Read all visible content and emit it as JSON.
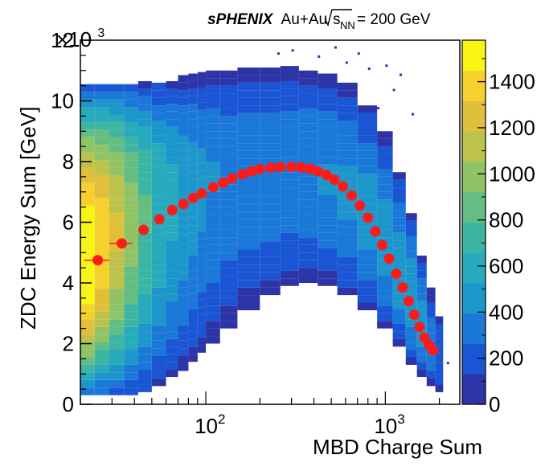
{
  "chart_data": {
    "type": "heatmap",
    "title": {
      "experiment": "sPHENIX",
      "collision": "Au+Au",
      "energy_symbol": "s",
      "energy_subscript": "NN",
      "energy_value": "= 200 GeV"
    },
    "xlabel": "MBD Charge Sum",
    "ylabel": "ZDC Energy Sum [GeV]",
    "x_scale": "log",
    "xlim": [
      20,
      2600
    ],
    "x_ticks": [
      {
        "value": 100,
        "base": "10",
        "exp": "2"
      },
      {
        "value": 1000,
        "base": "10",
        "exp": "3"
      }
    ],
    "ylim": [
      0,
      12000
    ],
    "y_multiplier": {
      "base": "×10",
      "exp": "3"
    },
    "y_ticks": [
      {
        "value": 0,
        "label": "0"
      },
      {
        "value": 2000,
        "label": "2"
      },
      {
        "value": 4000,
        "label": "4"
      },
      {
        "value": 6000,
        "label": "6"
      },
      {
        "value": 8000,
        "label": "8"
      },
      {
        "value": 10000,
        "label": "10"
      },
      {
        "value": 12000,
        "label": "12"
      }
    ],
    "colorbar": {
      "range": [
        0,
        1580
      ],
      "ticks": [
        {
          "value": 0,
          "label": "0"
        },
        {
          "value": 200,
          "label": "200"
        },
        {
          "value": 400,
          "label": "400"
        },
        {
          "value": 600,
          "label": "600"
        },
        {
          "value": 800,
          "label": "800"
        },
        {
          "value": 1000,
          "label": "1000"
        },
        {
          "value": 1200,
          "label": "1200"
        },
        {
          "value": 1400,
          "label": "1400"
        }
      ],
      "colors": [
        "#2c34a8",
        "#1a56d4",
        "#1a78d8",
        "#1d96cc",
        "#26aabc",
        "#3cb6a2",
        "#64be84",
        "#90c366",
        "#bcc24c",
        "#e0c03a",
        "#f6d02c",
        "#f8f416"
      ]
    },
    "band_2d_density": {
      "description_free": true,
      "x_bins_edges": [
        20,
        24,
        29,
        35,
        42,
        50,
        60,
        70,
        80,
        90,
        100,
        120,
        150,
        200,
        260,
        330,
        420,
        540,
        700,
        900,
        1100,
        1300,
        1500,
        1700,
        1900,
        2100
      ],
      "ridge_y": [
        4700,
        5300,
        5750,
        6100,
        6500,
        6750,
        7000,
        7200,
        7400,
        7550,
        7650,
        7750,
        7800,
        7820,
        7800,
        7700,
        7450,
        7000,
        6300,
        5300,
        4300,
        3400,
        2600,
        1900,
        1500
      ],
      "band_low": [
        300,
        300,
        300,
        300,
        400,
        600,
        900,
        1100,
        1400,
        1700,
        2000,
        2500,
        3100,
        3600,
        3900,
        4000,
        3900,
        3600,
        3100,
        2500,
        1900,
        1300,
        900,
        600,
        400
      ],
      "band_high": [
        10400,
        10450,
        10500,
        10500,
        10550,
        10600,
        10650,
        10700,
        10750,
        10800,
        10850,
        10900,
        11000,
        11100,
        11100,
        11000,
        10800,
        10400,
        9800,
        8900,
        7600,
        6200,
        4900,
        3700,
        2900
      ],
      "peak_density": [
        1580,
        1420,
        1200,
        980,
        800,
        650,
        560,
        500,
        460,
        430,
        400,
        370,
        360,
        360,
        370,
        380,
        400,
        420,
        440,
        460,
        470,
        480,
        440,
        360,
        260
      ]
    },
    "profile_series": {
      "name": "profile",
      "color": "#ff1a1a",
      "x": [
        25,
        34,
        45,
        55,
        65,
        75,
        85,
        95,
        110,
        125,
        140,
        160,
        180,
        200,
        230,
        260,
        300,
        340,
        380,
        420,
        470,
        520,
        580,
        650,
        720,
        800,
        880,
        960,
        1050,
        1150,
        1250,
        1350,
        1450,
        1550,
        1650,
        1750,
        1850
      ],
      "y": [
        4750,
        5300,
        5750,
        6100,
        6400,
        6600,
        6800,
        6950,
        7150,
        7300,
        7450,
        7580,
        7680,
        7750,
        7800,
        7820,
        7830,
        7810,
        7760,
        7680,
        7560,
        7400,
        7180,
        6880,
        6550,
        6150,
        5700,
        5250,
        4800,
        4300,
        3850,
        3400,
        2950,
        2550,
        2200,
        1950,
        1780
      ],
      "x_err": [
        4,
        5,
        0,
        0,
        0,
        0,
        0,
        0,
        0,
        0,
        0,
        0,
        0,
        0,
        0,
        0,
        0,
        0,
        0,
        0,
        0,
        0,
        0,
        0,
        0,
        0,
        0,
        0,
        0,
        0,
        0,
        0,
        0,
        0,
        0,
        0,
        0
      ]
    }
  }
}
